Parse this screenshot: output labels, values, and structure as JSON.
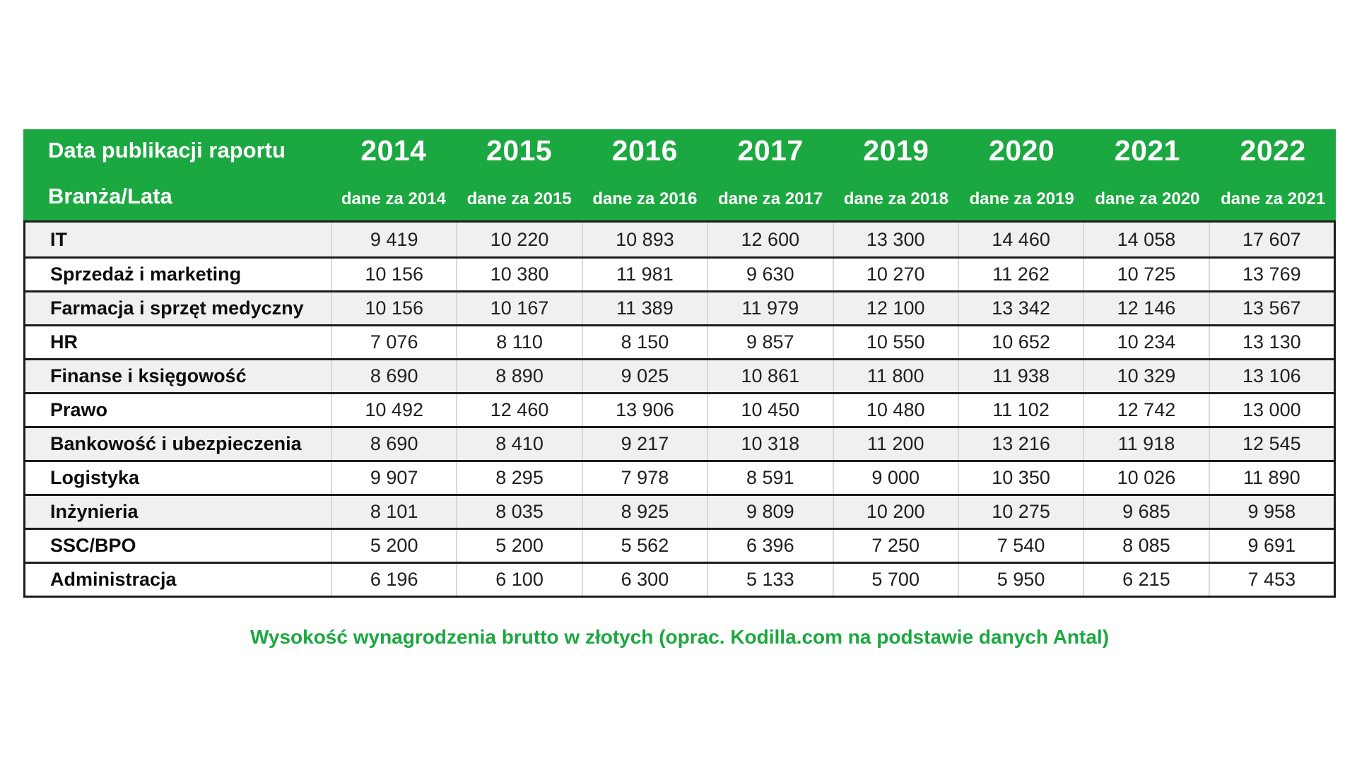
{
  "header": {
    "title_line1": "Data publikacji raportu",
    "title_line2": "Branża/Lata",
    "columns": [
      {
        "year": "2014",
        "subtitle": "dane za 2014"
      },
      {
        "year": "2015",
        "subtitle": "dane za 2015"
      },
      {
        "year": "2016",
        "subtitle": "dane za 2016"
      },
      {
        "year": "2017",
        "subtitle": "dane za 2017"
      },
      {
        "year": "2019",
        "subtitle": "dane za 2018"
      },
      {
        "year": "2020",
        "subtitle": "dane za 2019"
      },
      {
        "year": "2021",
        "subtitle": "dane za 2020"
      },
      {
        "year": "2022",
        "subtitle": "dane za 2021"
      }
    ]
  },
  "caption": "Wysokość wynagrodzenia brutto w złotych (oprac. Kodilla.com na podstawie danych Antal)",
  "colors": {
    "header_green": "#1BA840",
    "caption_green": "#1BA840",
    "stripe_gray": "#F0F0F0",
    "border_dark": "#1C1C1C",
    "grid_light": "#D9D9D9"
  },
  "chart_data": {
    "type": "table",
    "title": "Wysokość wynagrodzenia brutto w złotych (oprac. Kodilla.com na podstawie danych Antal)",
    "row_header": "Branża/Lata",
    "report_years": [
      "2014",
      "2015",
      "2016",
      "2017",
      "2019",
      "2020",
      "2021",
      "2022"
    ],
    "data_years": [
      "2014",
      "2015",
      "2016",
      "2017",
      "2018",
      "2019",
      "2020",
      "2021"
    ],
    "series": [
      {
        "name": "IT",
        "values": [
          9419,
          10220,
          10893,
          12600,
          13300,
          14460,
          14058,
          17607
        ]
      },
      {
        "name": "Sprzedaż i marketing",
        "values": [
          10156,
          10380,
          11981,
          9630,
          10270,
          11262,
          10725,
          13769
        ]
      },
      {
        "name": "Farmacja i sprzęt medyczny",
        "values": [
          10156,
          10167,
          11389,
          11979,
          12100,
          13342,
          12146,
          13567
        ]
      },
      {
        "name": "HR",
        "values": [
          7076,
          8110,
          8150,
          9857,
          10550,
          10652,
          10234,
          13130
        ]
      },
      {
        "name": "Finanse i księgowość",
        "values": [
          8690,
          8890,
          9025,
          10861,
          11800,
          11938,
          10329,
          13106
        ]
      },
      {
        "name": "Prawo",
        "values": [
          10492,
          12460,
          13906,
          10450,
          10480,
          11102,
          12742,
          13000
        ]
      },
      {
        "name": "Bankowość i ubezpieczenia",
        "values": [
          8690,
          8410,
          9217,
          10318,
          11200,
          13216,
          11918,
          12545
        ]
      },
      {
        "name": "Logistyka",
        "values": [
          9907,
          8295,
          7978,
          8591,
          9000,
          10350,
          10026,
          11890
        ]
      },
      {
        "name": "Inżynieria",
        "values": [
          8101,
          8035,
          8925,
          9809,
          10200,
          10275,
          9685,
          9958
        ]
      },
      {
        "name": "SSC/BPO",
        "values": [
          5200,
          5200,
          5562,
          6396,
          7250,
          7540,
          8085,
          9691
        ]
      },
      {
        "name": "Administracja",
        "values": [
          6196,
          6100,
          6300,
          5133,
          5700,
          5950,
          6215,
          7453
        ]
      }
    ]
  }
}
